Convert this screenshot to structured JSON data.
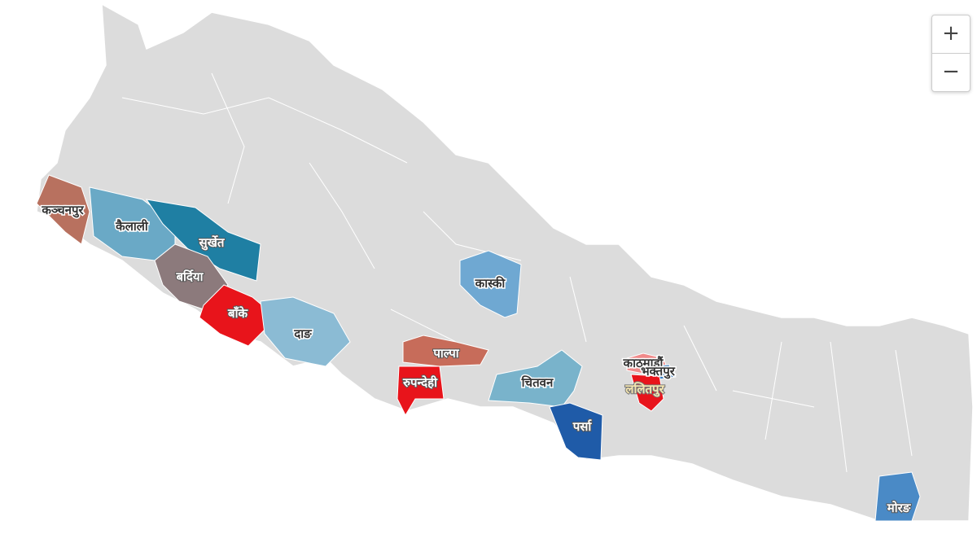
{
  "controls": {
    "zoom_in": "+",
    "zoom_out": "−"
  },
  "colors": {
    "base": "#dcdcdc",
    "border": "#ffffff"
  },
  "districts": [
    {
      "name": "कञ्चनपुर",
      "color": "#b8715f"
    },
    {
      "name": "कैलाली",
      "color": "#6aa9c6"
    },
    {
      "name": "सुर्खेत",
      "color": "#1f7fa3"
    },
    {
      "name": "बर्दिया",
      "color": "#8c7a7c"
    },
    {
      "name": "बाँके",
      "color": "#e8141b"
    },
    {
      "name": "दाङ",
      "color": "#8bbbd4"
    },
    {
      "name": "पाल्पा",
      "color": "#c76c5a"
    },
    {
      "name": "रुपन्देही",
      "color": "#e8141b"
    },
    {
      "name": "कास्की",
      "color": "#6fa8d2"
    },
    {
      "name": "चितवन",
      "color": "#79b3cb"
    },
    {
      "name": "पर्सा",
      "color": "#1f5ba8"
    },
    {
      "name": "काठमाडौं",
      "color": "#f08a8a"
    },
    {
      "name": "भक्तपुर",
      "color": "#3c7fc2"
    },
    {
      "name": "ललितपुर",
      "color": "#e8141b"
    },
    {
      "name": "मोरङ",
      "color": "#4a8ac6"
    }
  ]
}
